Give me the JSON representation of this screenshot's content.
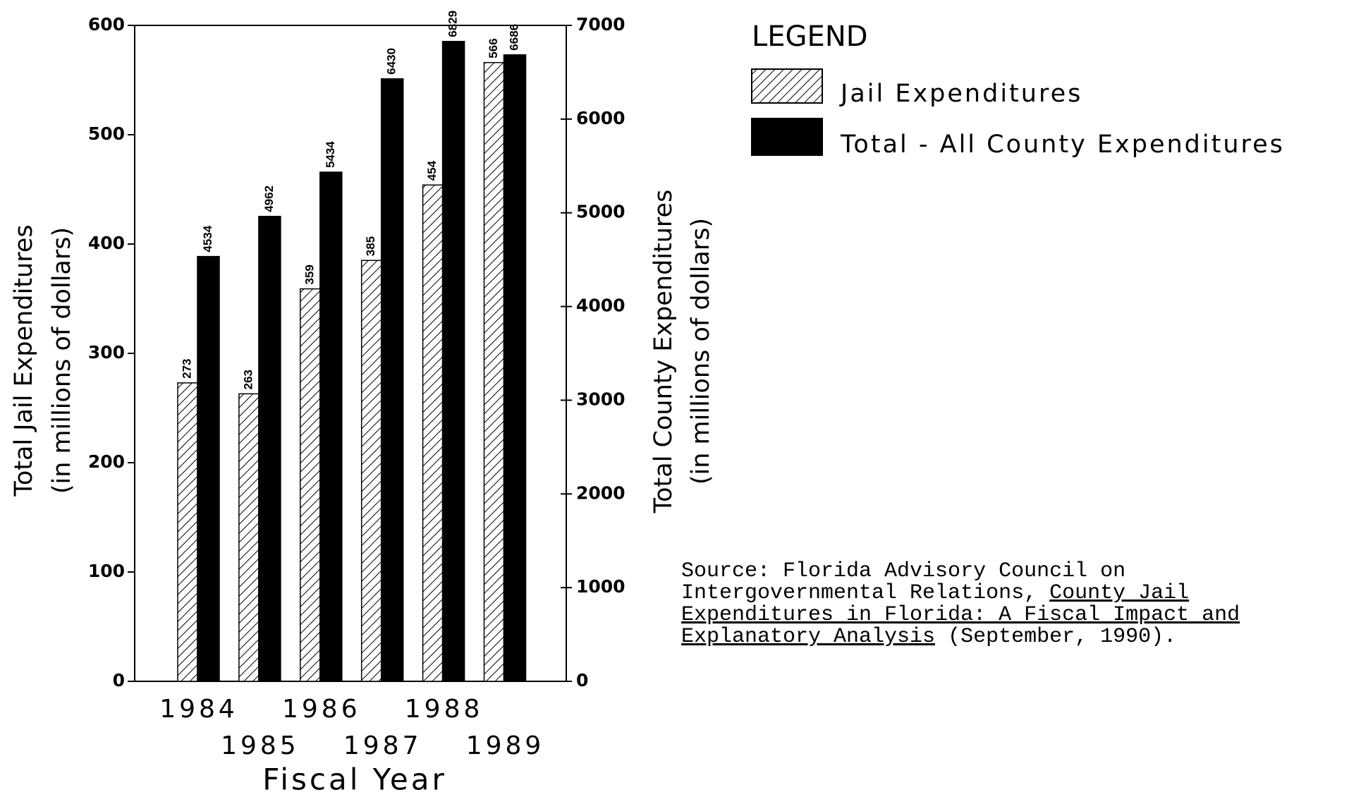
{
  "chart_data": {
    "type": "bar",
    "categories": [
      "1984",
      "1985",
      "1986",
      "1987",
      "1988",
      "1989"
    ],
    "series": [
      {
        "name": "Jail Expenditures",
        "color": "#000000",
        "pattern": "hatch",
        "values": [
          273,
          263,
          359,
          385,
          454,
          566
        ]
      },
      {
        "name": "Total - All County Expenditures",
        "color": "#000000",
        "axis": "y2",
        "values": [
          4534,
          4962,
          5434,
          6430,
          6829,
          6686
        ]
      }
    ],
    "ylim": [
      0,
      600
    ],
    "yticks": [
      0,
      100,
      200,
      300,
      400,
      500,
      600
    ],
    "y2lim": [
      0,
      7000
    ],
    "y2ticks": [
      0,
      1000,
      2000,
      3000,
      4000,
      5000,
      6000,
      7000
    ],
    "ylabel": [
      "Total Jail Expenditures",
      "(in millions of dollars)"
    ],
    "y2label": [
      "Total County Expenditures",
      "(in millions of dollars)"
    ],
    "xlabel": "Fiscal Year",
    "legend_title": "LEGEND",
    "source": {
      "prefix": "Source:  Florida Advisory Council on Intergovernmental Relations, ",
      "title": "County Jail Expenditures in Florida:  A Fiscal Impact and Explanatory Analysis",
      "suffix": " (September, 1990)."
    }
  }
}
